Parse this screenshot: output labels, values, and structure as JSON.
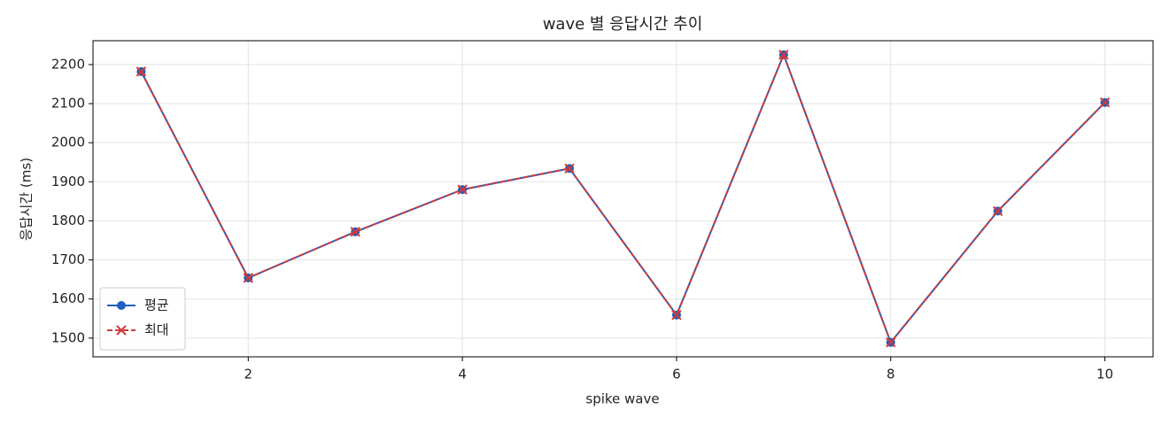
{
  "chart_data": {
    "type": "line",
    "title": "wave 별 응답시간 추이",
    "x_label": "spike wave",
    "y_label": "응답시간 (ms)",
    "x": [
      1,
      2,
      3,
      4,
      5,
      6,
      7,
      8,
      9,
      10
    ],
    "series": [
      {
        "name": "평균",
        "color": "#1f5fbf",
        "marker": "circle",
        "linestyle": "solid",
        "values": [
          2182,
          1654,
          1772,
          1880,
          1934,
          1559,
          2225,
          1489,
          1825,
          2103
        ]
      },
      {
        "name": "최대",
        "color": "#d03a3a",
        "marker": "x",
        "linestyle": "dashed",
        "values": [
          2182,
          1654,
          1772,
          1880,
          1934,
          1559,
          2225,
          1489,
          1825,
          2103
        ]
      }
    ],
    "xlim": [
      0.55,
      10.45
    ],
    "xticks": [
      2,
      4,
      6,
      8,
      10
    ],
    "ylim": [
      1452,
      2261
    ],
    "yticks": [
      1500,
      1600,
      1700,
      1800,
      1900,
      2000,
      2100,
      2200
    ],
    "grid": true,
    "legend": "lower left"
  }
}
